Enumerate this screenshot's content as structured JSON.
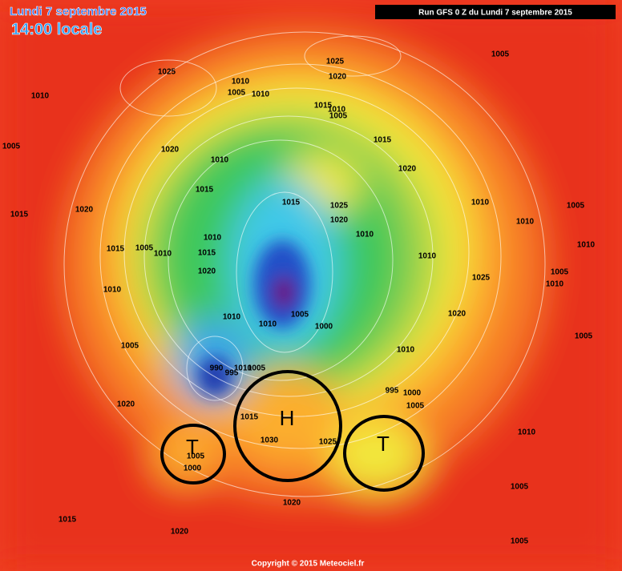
{
  "header": {
    "date": "Lundi 7 septembre 2015",
    "time": "14:00 locale",
    "run": "Run GFS 0 Z du Lundi 7 septembre 2015"
  },
  "footer": {
    "copyright": "Copyright © 2015 Meteociel.fr"
  },
  "systems": [
    "T",
    "H",
    "T"
  ],
  "isobar_labels": [
    "1025",
    "1010",
    "1005",
    "1015",
    "1020",
    "1020",
    "1010",
    "1005",
    "1010",
    "1025",
    "1020",
    "1005",
    "1015",
    "1010",
    "1005",
    "1015",
    "1010",
    "1020",
    "1015",
    "1015",
    "1025",
    "1020",
    "1010",
    "1005",
    "1005",
    "1010",
    "1010",
    "1015",
    "1015",
    "1010",
    "1010",
    "1010",
    "1010",
    "1005",
    "1020",
    "1010",
    "1025",
    "1010",
    "1010",
    "1005",
    "1000",
    "1010",
    "1020",
    "1005",
    "1005",
    "1010",
    "990",
    "995",
    "1010",
    "1005",
    "995",
    "1000",
    "1005",
    "1020",
    "1015",
    "1030",
    "1025",
    "1010",
    "1005",
    "1000",
    "1020",
    "1005",
    "1015",
    "1020",
    "1005"
  ]
}
